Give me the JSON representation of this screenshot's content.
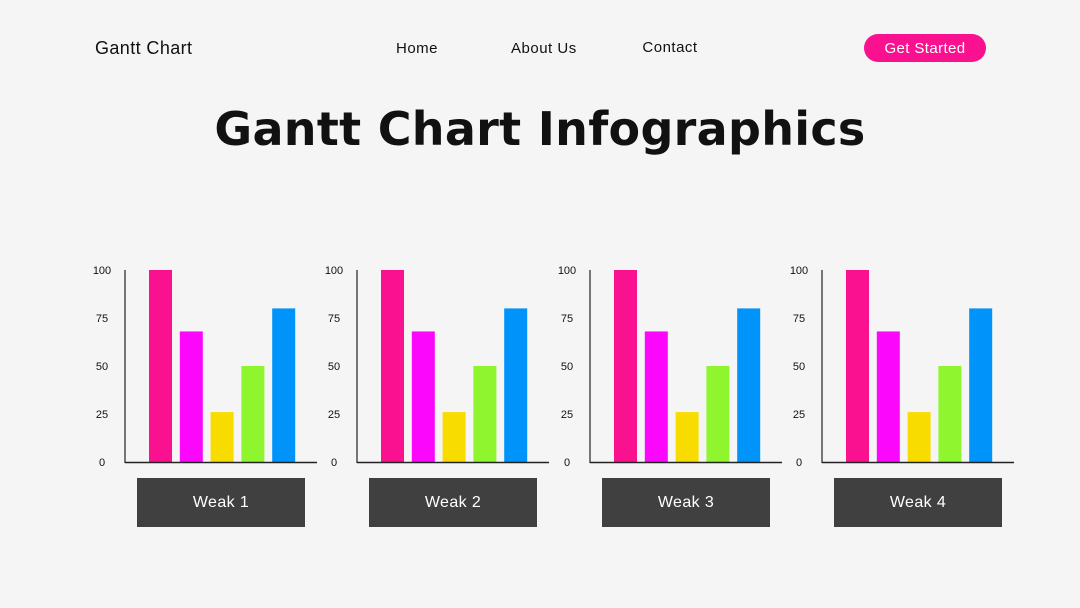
{
  "header": {
    "brand": "Gantt Chart",
    "nav": [
      "Home",
      "About Us",
      "Contact"
    ],
    "cta": "Get Started"
  },
  "page_title": "Gantt Chart Infographics",
  "colors": {
    "accent": "#fa118f",
    "label_bg": "#404040",
    "bars": [
      "#fa118f",
      "#fb07fb",
      "#f8dc00",
      "#8ef52e",
      "#0094fb"
    ]
  },
  "chart_data": [
    {
      "type": "bar",
      "title": "",
      "xlabel": "Weak 1",
      "ylabel": "",
      "ylim": [
        0,
        100
      ],
      "yticks": [
        "0",
        "25",
        "50",
        "75",
        "100"
      ],
      "values": [
        100,
        68,
        26,
        50,
        80
      ]
    },
    {
      "type": "bar",
      "title": "",
      "xlabel": "Weak 2",
      "ylabel": "",
      "ylim": [
        0,
        100
      ],
      "yticks": [
        "0",
        "25",
        "50",
        "75",
        "100"
      ],
      "values": [
        100,
        68,
        26,
        50,
        80
      ]
    },
    {
      "type": "bar",
      "title": "",
      "xlabel": "Weak 3",
      "ylabel": "",
      "ylim": [
        0,
        100
      ],
      "yticks": [
        "0",
        "25",
        "50",
        "75",
        "100"
      ],
      "values": [
        100,
        68,
        26,
        50,
        80
      ]
    },
    {
      "type": "bar",
      "title": "",
      "xlabel": "Weak 4",
      "ylabel": "",
      "ylim": [
        0,
        100
      ],
      "yticks": [
        "0",
        "25",
        "50",
        "75",
        "100"
      ],
      "values": [
        100,
        68,
        26,
        50,
        80
      ]
    }
  ]
}
